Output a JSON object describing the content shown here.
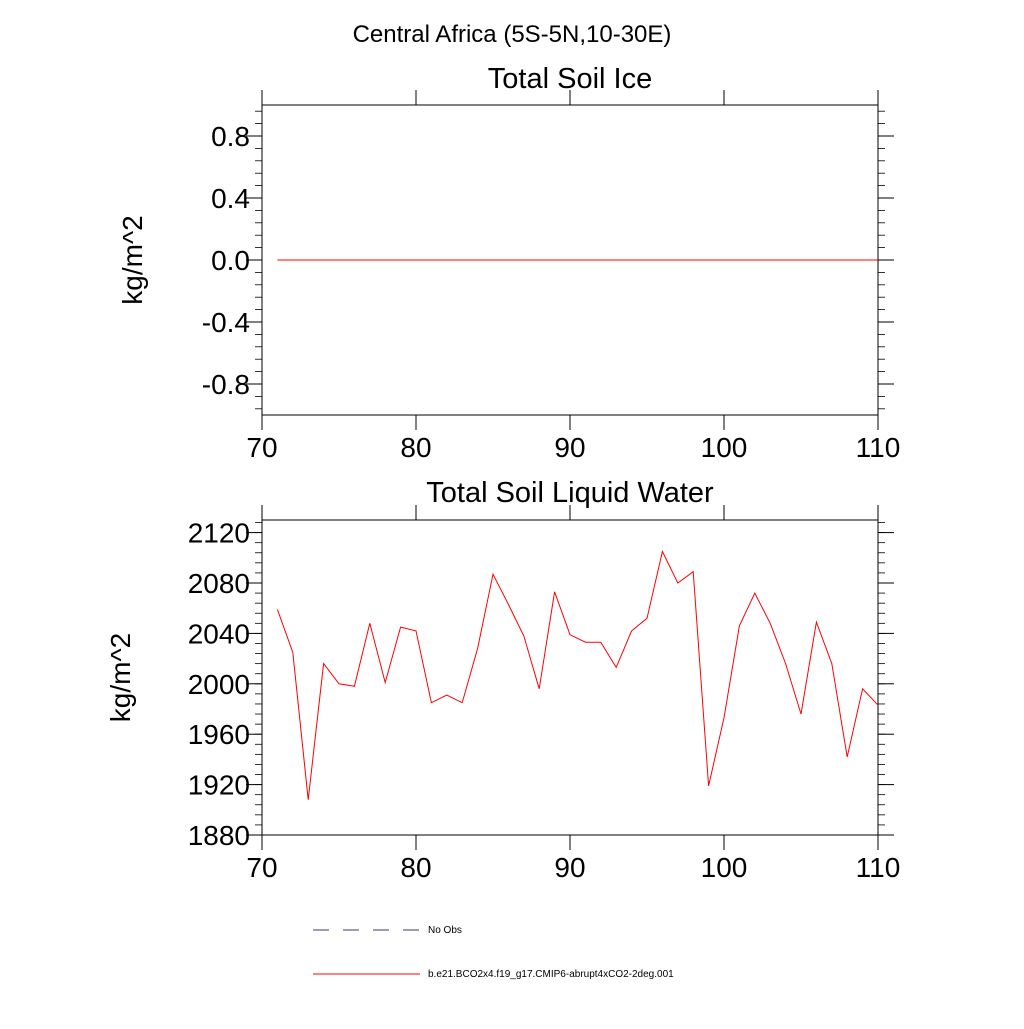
{
  "page_title": "Central Africa (5S-5N,10-30E)",
  "colors": {
    "series": "#ff0000",
    "obs": "#3a3a6a",
    "frame": "#000000"
  },
  "legend": {
    "obs_label": "No Obs",
    "model_label": "b.e21.BCO2x4.f19_g17.CMIP6-abrupt4xCO2-2deg.001"
  },
  "chart_data": [
    {
      "type": "line",
      "title": "Total Soil Ice",
      "xlabel": "",
      "ylabel": "kg/m^2",
      "xlim": [
        70,
        110
      ],
      "ylim": [
        -1.0,
        1.0
      ],
      "xticks": [
        70,
        80,
        90,
        100,
        110
      ],
      "xtick_labels": [
        "70",
        "80",
        "90",
        "100",
        "110"
      ],
      "yticks": [
        -0.8,
        -0.4,
        0.0,
        0.4,
        0.8
      ],
      "ytick_labels": [
        "-0.8",
        "-0.4",
        "0.0",
        "0.4",
        "0.8"
      ],
      "x": [
        71,
        110
      ],
      "series": [
        {
          "name": "b.e21.BCO2x4.f19_g17.CMIP6-abrupt4xCO2-2deg.001",
          "values": [
            0.0,
            0.0
          ]
        }
      ]
    },
    {
      "type": "line",
      "title": "Total Soil Liquid Water",
      "xlabel": "",
      "ylabel": "kg/m^2",
      "xlim": [
        70,
        110
      ],
      "ylim": [
        1880,
        2130
      ],
      "xticks": [
        70,
        80,
        90,
        100,
        110
      ],
      "xtick_labels": [
        "70",
        "80",
        "90",
        "100",
        "110"
      ],
      "yticks": [
        1880,
        1920,
        1960,
        2000,
        2040,
        2080,
        2120
      ],
      "ytick_labels": [
        "1880",
        "1920",
        "1960",
        "2000",
        "2040",
        "2080",
        "2120"
      ],
      "x": [
        71,
        72,
        73,
        74,
        75,
        76,
        77,
        78,
        79,
        80,
        81,
        82,
        83,
        84,
        85,
        86,
        87,
        88,
        89,
        90,
        91,
        92,
        93,
        94,
        95,
        96,
        97,
        98,
        99,
        100,
        101,
        102,
        103,
        104,
        105,
        106,
        107,
        108,
        109,
        110
      ],
      "series": [
        {
          "name": "b.e21.BCO2x4.f19_g17.CMIP6-abrupt4xCO2-2deg.001",
          "values": [
            2059,
            2025,
            1908,
            2016,
            2000,
            1998,
            2048,
            2001,
            2045,
            2042,
            1985,
            1991,
            1985,
            2028,
            2087,
            2063,
            2038,
            1996,
            2073,
            2039,
            2033,
            2033,
            2013,
            2042,
            2052,
            2105,
            2080,
            2089,
            1919,
            1973,
            2046,
            2072,
            2048,
            2016,
            1976,
            2049,
            2016,
            1942,
            1996,
            1983
          ]
        }
      ]
    }
  ]
}
